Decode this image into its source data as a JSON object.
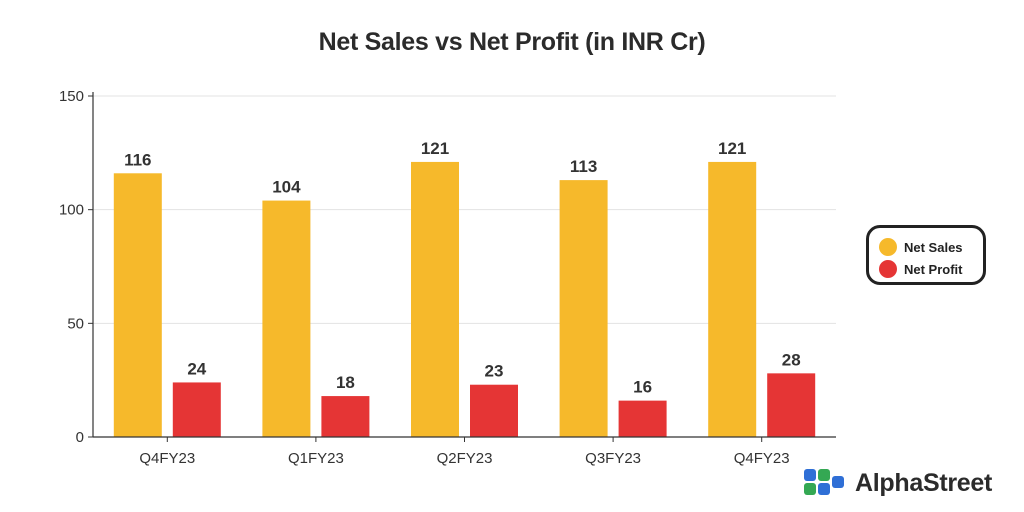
{
  "chart_data": {
    "type": "bar",
    "title": "Net Sales vs Net Profit (in INR Cr)",
    "categories": [
      "Q4FY23",
      "Q1FY23",
      "Q2FY23",
      "Q3FY23",
      "Q4FY23"
    ],
    "series": [
      {
        "name": "Net Sales",
        "values": [
          116,
          104,
          121,
          113,
          121
        ],
        "color": "#F6B92B"
      },
      {
        "name": "Net Profit",
        "values": [
          24,
          18,
          23,
          16,
          28
        ],
        "color": "#E53535"
      }
    ],
    "ylim": [
      0,
      150
    ],
    "yticks": [
      0,
      50,
      100,
      150
    ],
    "grid": true,
    "legend_position": "right"
  },
  "brand": {
    "name": "AlphaStreet",
    "icon": "alphastreet-logo-icon"
  }
}
